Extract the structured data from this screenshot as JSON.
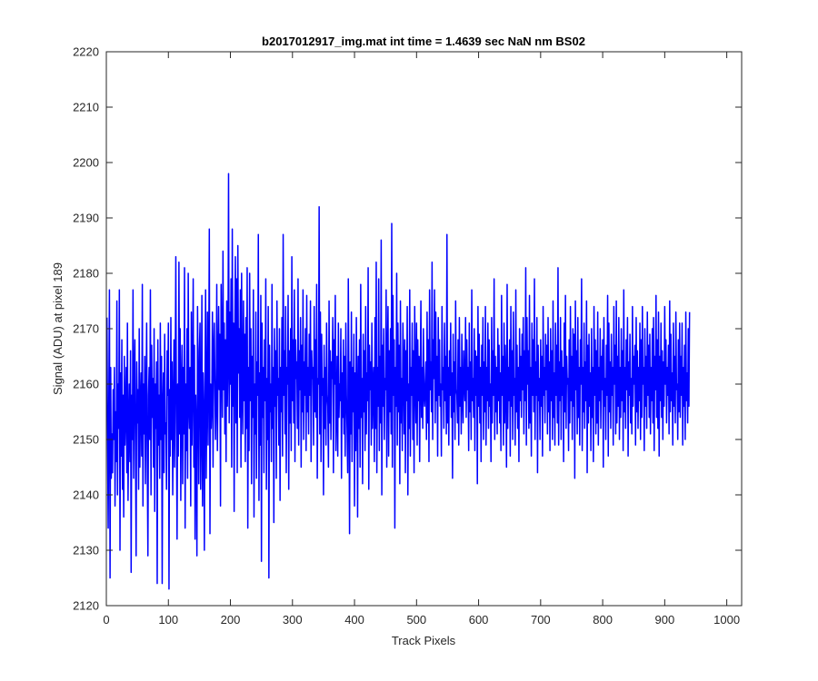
{
  "chart_data": {
    "type": "line",
    "title": "b2017012917_img.mat int time = 1.4639 sec  NaN nm BS02",
    "xlabel": "Track Pixels",
    "ylabel": "Signal (ADU) at pixel 189",
    "xlim": [
      0,
      1024
    ],
    "ylim": [
      2120,
      2220
    ],
    "x_ticks": [
      0,
      100,
      200,
      300,
      400,
      500,
      600,
      700,
      800,
      900,
      1000
    ],
    "y_ticks": [
      2120,
      2130,
      2140,
      2150,
      2160,
      2170,
      2180,
      2190,
      2200,
      2210,
      2220
    ],
    "grid": false,
    "series": [
      {
        "color": "#0000ff",
        "x_start": 1,
        "x_step": 1,
        "values": [
          2172,
          2151,
          2134,
          2157,
          2177,
          2125,
          2163,
          2143,
          2151,
          2144,
          2159,
          2150,
          2163,
          2138,
          2155,
          2146,
          2175,
          2140,
          2160,
          2152,
          2177,
          2130,
          2162,
          2147,
          2168,
          2141,
          2158,
          2136,
          2165,
          2149,
          2155,
          2163,
          2144,
          2171,
          2139,
          2152,
          2160,
          2146,
          2166,
          2126,
          2158,
          2150,
          2177,
          2143,
          2161,
          2168,
          2148,
          2129,
          2164,
          2153,
          2159,
          2141,
          2170,
          2145,
          2156,
          2162,
          2147,
          2178,
          2138,
          2160,
          2151,
          2165,
          2142,
          2157,
          2171,
          2146,
          2129,
          2158,
          2163,
          2150,
          2177,
          2140,
          2167,
          2154,
          2161,
          2145,
          2170,
          2137,
          2160,
          2152,
          2164,
          2124,
          2168,
          2149,
          2158,
          2143,
          2171,
          2150,
          2165,
          2124,
          2156,
          2162,
          2144,
          2169,
          2151,
          2153,
          2141,
          2166,
          2158,
          2171,
          2123,
          2159,
          2147,
          2172,
          2150,
          2164,
          2140,
          2156,
          2168,
          2145,
          2162,
          2183,
          2153,
          2132,
          2160,
          2147,
          2182,
          2151,
          2170,
          2139,
          2159,
          2167,
          2142,
          2163,
          2151,
          2181,
          2134,
          2160,
          2148,
          2170,
          2143,
          2180,
          2156,
          2152,
          2163,
          2138,
          2173,
          2149,
          2161,
          2179,
          2145,
          2167,
          2132,
          2158,
          2151,
          2129,
          2174,
          2160,
          2142,
          2166,
          2171,
          2141,
          2152,
          2176,
          2138,
          2162,
          2155,
          2130,
          2160,
          2177,
          2143,
          2157,
          2173,
          2149,
          2164,
          2188,
          2133,
          2160,
          2152,
          2157,
          2173,
          2145,
          2166,
          2171,
          2160,
          2150,
          2157,
          2178,
          2148,
          2163,
          2174,
          2159,
          2169,
          2138,
          2178,
          2167,
          2154,
          2184,
          2159,
          2171,
          2151,
          2168,
          2146,
          2175,
          2156,
          2164,
          2198,
          2153,
          2173,
          2160,
          2179,
          2145,
          2188,
          2156,
          2171,
          2137,
          2168,
          2183,
          2153,
          2179,
          2144,
          2185,
          2162,
          2170,
          2154,
          2177,
          2145,
          2180,
          2160,
          2151,
          2175,
          2157,
          2169,
          2146,
          2172,
          2152,
          2181,
          2134,
          2163,
          2148,
          2180,
          2157,
          2170,
          2142,
          2165,
          2154,
          2177,
          2136,
          2160,
          2151,
          2173,
          2143,
          2164,
          2158,
          2187,
          2139,
          2162,
          2149,
          2176,
          2128,
          2171,
          2154,
          2163,
          2144,
          2168,
          2157,
          2179,
          2141,
          2161,
          2150,
          2174,
          2125,
          2167,
          2155,
          2160,
          2146,
          2178,
          2152,
          2163,
          2135,
          2170,
          2156,
          2166,
          2143,
          2175,
          2158,
          2161,
          2149,
          2170,
          2139,
          2163,
          2155,
          2172,
          2147,
          2187,
          2158,
          2166,
          2151,
          2174,
          2144,
          2163,
          2160,
          2176,
          2141,
          2166,
          2153,
          2170,
          2148,
          2183,
          2157,
          2168,
          2153,
          2177,
          2146,
          2168,
          2161,
          2164,
          2152,
          2179,
          2149,
          2166,
          2159,
          2172,
          2145,
          2167,
          2155,
          2177,
          2150,
          2164,
          2158,
          2170,
          2148,
          2176,
          2155,
          2163,
          2151,
          2169,
          2158,
          2175,
          2146,
          2166,
          2161,
          2163,
          2149,
          2174,
          2155,
          2168,
          2154,
          2178,
          2143,
          2161,
          2160,
          2192,
          2151,
          2173,
          2146,
          2169,
          2158,
          2161,
          2140,
          2167,
          2152,
          2163,
          2149,
          2171,
          2158,
          2156,
          2145,
          2175,
          2153,
          2166,
          2150,
          2164,
          2161,
          2172,
          2144,
          2168,
          2160,
          2176,
          2148,
          2155,
          2165,
          2147,
          2171,
          2154,
          2160,
          2157,
          2170,
          2143,
          2162,
          2154,
          2168,
          2151,
          2165,
          2147,
          2171,
          2158,
          2152,
          2144,
          2179,
          2160,
          2133,
          2164,
          2151,
          2173,
          2146,
          2163,
          2155,
          2169,
          2138,
          2162,
          2148,
          2172,
          2157,
          2136,
          2165,
          2152,
          2168,
          2145,
          2178,
          2154,
          2161,
          2142,
          2169,
          2155,
          2166,
          2148,
          2174,
          2151,
          2162,
          2157,
          2181,
          2141,
          2167,
          2159,
          2164,
          2149,
          2171,
          2152,
          2160,
          2163,
          2146,
          2172,
          2152,
          2182,
          2144,
          2163,
          2156,
          2179,
          2148,
          2165,
          2153,
          2186,
          2140,
          2167,
          2156,
          2170,
          2150,
          2161,
          2159,
          2177,
          2145,
          2164,
          2174,
          2147,
          2166,
          2155,
          2170,
          2151,
          2189,
          2145,
          2176,
          2158,
          2168,
          2134,
          2163,
          2156,
          2180,
          2149,
          2171,
          2155,
          2167,
          2142,
          2175,
          2153,
          2161,
          2148,
          2171,
          2163,
          2151,
          2168,
          2144,
          2166,
          2157,
          2174,
          2140,
          2160,
          2152,
          2177,
          2147,
          2163,
          2158,
          2171,
          2150,
          2166,
          2144,
          2174,
          2161,
          2153,
          2171,
          2149,
          2168,
          2157,
          2165,
          2146,
          2161,
          2175,
          2154,
          2163,
          2152,
          2170,
          2158,
          2156,
          2160,
          2164,
          2150,
          2173,
          2153,
          2168,
          2146,
          2177,
          2159,
          2164,
          2155,
          2182,
          2150,
          2168,
          2161,
          2177,
          2153,
          2173,
          2157,
          2165,
          2147,
          2172,
          2158,
          2168,
          2156,
          2160,
          2147,
          2174,
          2159,
          2163,
          2152,
          2171,
          2157,
          2165,
          2151,
          2187,
          2153,
          2163,
          2149,
          2166,
          2158,
          2171,
          2154,
          2162,
          2143,
          2169,
          2155,
          2164,
          2150,
          2175,
          2159,
          2158,
          2153,
          2168,
          2149,
          2172,
          2156,
          2163,
          2151,
          2169,
          2158,
          2153,
          2166,
          2160,
          2157,
          2172,
          2154,
          2168,
          2159,
          2163,
          2148,
          2171,
          2155,
          2164,
          2150,
          2177,
          2157,
          2161,
          2154,
          2170,
          2148,
          2166,
          2158,
          2165,
          2142,
          2174,
          2156,
          2169,
          2153,
          2163,
          2146,
          2167,
          2158,
          2172,
          2150,
          2164,
          2155,
          2174,
          2149,
          2163,
          2157,
          2171,
          2152,
          2168,
          2156,
          2160,
          2146,
          2172,
          2153,
          2166,
          2158,
          2179,
          2150,
          2165,
          2155,
          2163,
          2151,
          2170,
          2157,
          2167,
          2153,
          2162,
          2148,
          2176,
          2158,
          2165,
          2149,
          2171,
          2153,
          2167,
          2160,
          2145,
          2178,
          2152,
          2163,
          2157,
          2168,
          2147,
          2174,
          2156,
          2166,
          2150,
          2173,
          2158,
          2161,
          2149,
          2177,
          2155,
          2167,
          2152,
          2163,
          2146,
          2170,
          2157,
          2165,
          2154,
          2169,
          2159,
          2172,
          2151,
          2166,
          2157,
          2181,
          2149,
          2172,
          2160,
          2166,
          2152,
          2176,
          2153,
          2163,
          2147,
          2171,
          2158,
          2168,
          2155,
          2179,
          2150,
          2164,
          2158,
          2172,
          2144,
          2167,
          2157,
          2161,
          2150,
          2168,
          2156,
          2165,
          2147,
          2174,
          2158,
          2163,
          2153,
          2169,
          2159,
          2167,
          2151,
          2172,
          2155,
          2164,
          2148,
          2170,
          2157,
          2166,
          2150,
          2175,
          2154,
          2162,
          2149,
          2171,
          2158,
          2167,
          2153,
          2181,
          2149,
          2164,
          2157,
          2172,
          2150,
          2166,
          2158,
          2163,
          2146,
          2171,
          2155,
          2176,
          2152,
          2165,
          2160,
          2161,
          2148,
          2168,
          2153,
          2174,
          2157,
          2165,
          2150,
          2170,
          2156,
          2169,
          2143,
          2175,
          2159,
          2166,
          2151,
          2172,
          2154,
          2163,
          2149,
          2168,
          2160,
          2179,
          2148,
          2163,
          2155,
          2171,
          2152,
          2164,
          2157,
          2175,
          2144,
          2167,
          2153,
          2169,
          2156,
          2162,
          2148,
          2170,
          2154,
          2163,
          2146,
          2174,
          2158,
          2168,
          2151,
          2166,
          2153,
          2173,
          2149,
          2163,
          2157,
          2170,
          2152,
          2165,
          2159,
          2168,
          2145,
          2172,
          2156,
          2161,
          2150,
          2167,
          2158,
          2176,
          2147,
          2171,
          2155,
          2164,
          2152,
          2169,
          2158,
          2163,
          2149,
          2174,
          2160,
          2167,
          2151,
          2175,
          2153,
          2165,
          2156,
          2172,
          2150,
          2163,
          2154,
          2170,
          2157,
          2166,
          2148,
          2177,
          2155,
          2163,
          2152,
          2168,
          2159,
          2172,
          2147,
          2164,
          2158,
          2169,
          2153,
          2161,
          2151,
          2174,
          2156,
          2165,
          2160,
          2167,
          2149,
          2172,
          2155,
          2166,
          2152,
          2163,
          2157,
          2171,
          2150,
          2168,
          2154,
          2174,
          2160,
          2163,
          2148,
          2170,
          2156,
          2165,
          2152,
          2173,
          2158,
          2167,
          2154,
          2169,
          2151,
          2163,
          2157,
          2170,
          2153,
          2172,
          2148,
          2165,
          2159,
          2176,
          2154,
          2168,
          2152,
          2173,
          2147,
          2165,
          2157,
          2171,
          2154,
          2166,
          2150,
          2164,
          2156,
          2174,
          2160,
          2168,
          2153,
          2163,
          2158,
          2167,
          2151,
          2175,
          2155,
          2169,
          2157,
          2162,
          2149,
          2171,
          2156,
          2165,
          2153,
          2173,
          2159,
          2160,
          2150,
          2168,
          2155,
          2171,
          2154,
          2165,
          2158,
          2171,
          2149,
          2163,
          2156,
          2167,
          2150,
          2173,
          2157,
          2162,
          2153,
          2170,
          2156,
          2173
        ]
      }
    ]
  }
}
